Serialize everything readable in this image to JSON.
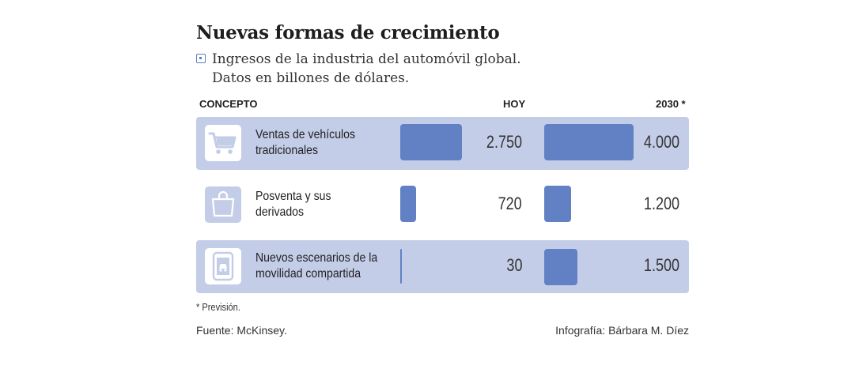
{
  "header": {
    "title": "Nuevas formas de crecimiento",
    "subtitle_line1": "Ingresos de la industria del automóvil global.",
    "subtitle_line2": "Datos en billones de dólares."
  },
  "columns": {
    "concept": "CONCEPTO",
    "today": "HOY",
    "future": "2030 *"
  },
  "rows": [
    {
      "label_line1": "Ventas de vehículos",
      "label_line2": "tradicionales",
      "icon": "shopping-cart-icon",
      "today": "2.750",
      "future": "4.000"
    },
    {
      "label_line1": "Posventa y sus",
      "label_line2": "derivados",
      "icon": "shopping-bag-icon",
      "today": "720",
      "future": "1.200"
    },
    {
      "label_line1": "Nuevos escenarios de la",
      "label_line2": "movilidad compartida",
      "icon": "mobile-car-icon",
      "today": "30",
      "future": "1.500"
    }
  ],
  "colors": {
    "bar": "#6281c4",
    "row_shade": "#c4cde8"
  },
  "chart_data": {
    "type": "bar",
    "categories": [
      "Ventas de vehículos tradicionales",
      "Posventa y sus derivados",
      "Nuevos escenarios de la movilidad compartida"
    ],
    "series": [
      {
        "name": "HOY",
        "values": [
          2750,
          720,
          30
        ]
      },
      {
        "name": "2030 *",
        "values": [
          4000,
          1200,
          1500
        ]
      }
    ],
    "title": "Nuevas formas de crecimiento",
    "subtitle": "Ingresos de la industria del automóvil global. Datos en billones de dólares."
  },
  "footer": {
    "note": "* Previsión.",
    "source": "Fuente: McKinsey.",
    "credit": "Infografía: Bárbara M. Díez"
  }
}
